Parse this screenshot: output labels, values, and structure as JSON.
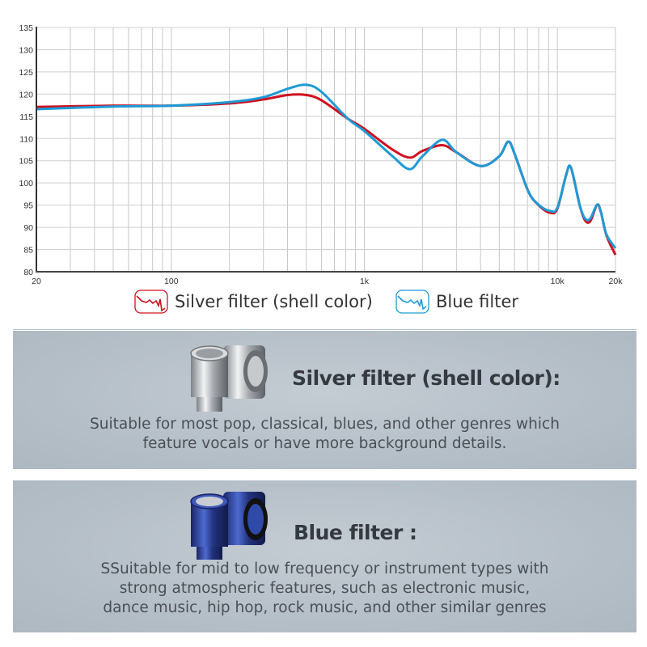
{
  "chart_data": {
    "type": "line",
    "xscale": "log",
    "xlim": [
      20,
      20000
    ],
    "ylim": [
      80,
      135
    ],
    "grid": true,
    "legend_position": "bottom",
    "x_tick_labels": [
      {
        "value": 20,
        "label": "20"
      },
      {
        "value": 100,
        "label": "100"
      },
      {
        "value": 1000,
        "label": "1k"
      },
      {
        "value": 10000,
        "label": "10k"
      },
      {
        "value": 20000,
        "label": "20k"
      }
    ],
    "y_ticks": [
      80,
      85,
      90,
      95,
      100,
      105,
      110,
      115,
      120,
      125,
      130,
      135
    ],
    "series": [
      {
        "name": "Silver filter (shell color)",
        "color": "#d0101e",
        "x": [
          20,
          50,
          100,
          200,
          300,
          400,
          500,
          600,
          820,
          1000,
          1400,
          1720,
          2000,
          2530,
          3000,
          4000,
          5000,
          5560,
          6000,
          7070,
          8000,
          9140,
          10000,
          11090,
          11750,
          13030,
          13900,
          14820,
          16070,
          16840,
          17960,
          20000
        ],
        "y": [
          117.1,
          117.4,
          117.4,
          117.9,
          118.8,
          119.8,
          119.8,
          118.6,
          114.5,
          112.2,
          107.5,
          105.7,
          107.2,
          108.5,
          106.9,
          103.8,
          106.0,
          109.3,
          106.6,
          98.1,
          95.0,
          93.3,
          94.2,
          101.7,
          103.5,
          95.1,
          91.6,
          91.4,
          95.1,
          93.3,
          88.2,
          83.8
        ]
      },
      {
        "name": "Blue filter",
        "color": "#1e9ad6",
        "x": [
          20,
          50,
          100,
          200,
          300,
          400,
          500,
          600,
          820,
          1000,
          1400,
          1720,
          2000,
          2530,
          3000,
          4000,
          5000,
          5560,
          6000,
          7070,
          8000,
          9140,
          10000,
          11090,
          11750,
          13030,
          13900,
          14820,
          16070,
          16840,
          17960,
          20000
        ],
        "y": [
          116.6,
          117.2,
          117.4,
          118.2,
          119.3,
          121.2,
          122.1,
          120.5,
          114.5,
          111.7,
          106.0,
          103.1,
          106.0,
          109.7,
          106.9,
          103.8,
          106.0,
          109.3,
          106.6,
          98.1,
          95.1,
          93.7,
          94.4,
          101.7,
          103.5,
          95.1,
          92.0,
          92.0,
          95.1,
          93.3,
          88.4,
          85.3
        ]
      }
    ]
  },
  "legend": {
    "silver_label": "Silver filter (shell color)",
    "blue_label": "Blue filter"
  },
  "panels": {
    "silver": {
      "title": "Silver filter (shell color):",
      "lines": [
        "Suitable for most pop, classical, blues, and other genres which",
        "feature vocals or have more background details."
      ]
    },
    "blue": {
      "title": "Blue filter :",
      "lines": [
        "SSuitable for mid to low frequency or instrument types with",
        "strong atmospheric features, such as electronic music,",
        "dance music, hip hop, rock music, and other similar genres"
      ]
    }
  }
}
